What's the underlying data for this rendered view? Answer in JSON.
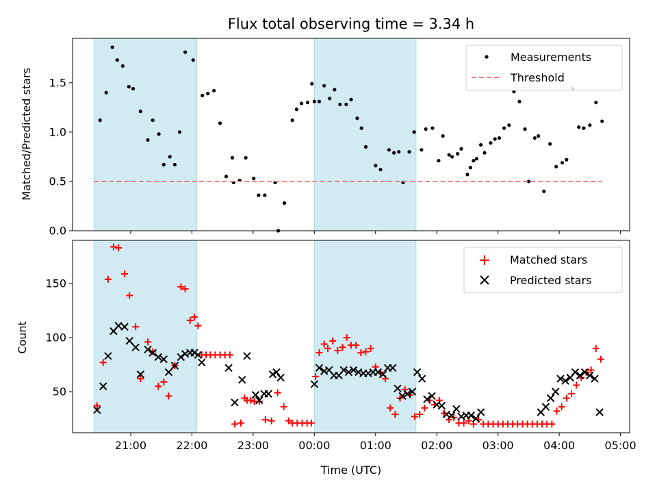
{
  "chart_data": [
    {
      "type": "scatter",
      "title": "Flux total observing time = 3.34 h",
      "xlabel": "",
      "ylabel": "Matched/Predicted stars",
      "x_unit": "hours since 00:00 UTC (night spanning midnight)",
      "xlim": [
        -3.95,
        5.15
      ],
      "ylim": [
        0,
        1.95
      ],
      "yticks": [
        0.0,
        0.5,
        1.0,
        1.5
      ],
      "ytick_labels": [
        "0.0",
        "0.5",
        "1.0",
        "1.5"
      ],
      "shaded_intervals": [
        [
          -3.6,
          -1.92
        ],
        [
          0.0,
          1.66
        ]
      ],
      "shade_color": "#add8e6",
      "legend_position": "upper right",
      "series": [
        {
          "name": "Measurements",
          "marker": "dot",
          "color": "#000000",
          "x": [
            -3.5,
            -3.4,
            -3.3,
            -3.22,
            -3.13,
            -3.03,
            -2.96,
            -2.84,
            -2.72,
            -2.64,
            -2.54,
            -2.46,
            -2.36,
            -2.28,
            -2.2,
            -2.11,
            -1.98,
            -1.83,
            -1.74,
            -1.64,
            -1.54,
            -1.44,
            -1.34,
            -1.32,
            -1.22,
            -1.12,
            -0.99,
            -0.91,
            -0.81,
            -0.64,
            -0.59,
            -0.49,
            -0.36,
            -0.29,
            -0.21,
            -0.11,
            -0.04,
            0.0,
            0.08,
            0.16,
            0.25,
            0.33,
            0.42,
            0.52,
            0.6,
            0.7,
            0.77,
            0.84,
            1.0,
            1.08,
            1.22,
            1.3,
            1.38,
            1.45,
            1.55,
            1.63,
            1.75,
            1.82,
            1.93,
            2.03,
            2.1,
            2.2,
            2.25,
            2.34,
            2.4,
            2.5,
            2.55,
            2.6,
            2.65,
            2.72,
            2.78,
            2.88,
            2.95,
            3.02,
            3.1,
            3.18,
            3.26,
            3.35,
            3.44,
            3.5,
            3.6,
            3.66,
            3.75,
            3.85,
            3.95,
            4.05,
            4.12,
            4.22,
            4.32,
            4.4,
            4.5,
            4.6,
            4.7
          ],
          "y": [
            1.12,
            1.4,
            1.86,
            1.73,
            1.67,
            1.46,
            1.44,
            1.21,
            0.92,
            1.12,
            0.98,
            0.67,
            0.75,
            0.67,
            1.0,
            1.81,
            1.73,
            1.37,
            1.39,
            1.42,
            1.09,
            0.55,
            0.74,
            0.49,
            0.51,
            0.74,
            0.53,
            0.36,
            0.36,
            0.49,
            0.0,
            0.28,
            1.12,
            1.23,
            1.29,
            1.3,
            1.49,
            1.31,
            1.31,
            1.47,
            1.34,
            1.43,
            1.28,
            1.28,
            1.33,
            1.14,
            1.04,
            0.85,
            0.66,
            0.62,
            0.82,
            0.79,
            0.8,
            0.49,
            0.8,
            1.0,
            0.82,
            1.03,
            1.04,
            0.71,
            0.96,
            0.77,
            0.75,
            0.78,
            0.83,
            0.57,
            0.64,
            0.71,
            0.73,
            0.87,
            0.79,
            0.89,
            0.93,
            0.94,
            1.04,
            1.07,
            1.41,
            1.31,
            1.03,
            0.5,
            0.94,
            0.96,
            0.4,
            0.88,
            0.65,
            0.69,
            0.72,
            1.44,
            1.05,
            1.04,
            1.07,
            1.3,
            1.11
          ]
        },
        {
          "name": "Threshold",
          "marker": "dashed-line",
          "color": "#f08080",
          "x": [
            -3.6,
            4.7
          ],
          "y": [
            0.5,
            0.5
          ]
        }
      ]
    },
    {
      "type": "scatter",
      "title": "",
      "xlabel": "Time (UTC)",
      "ylabel": "Count",
      "xlim": [
        -3.95,
        5.15
      ],
      "ylim": [
        12,
        190
      ],
      "yticks": [
        50,
        100,
        150
      ],
      "ytick_labels": [
        "50",
        "100",
        "150"
      ],
      "xticks": [
        -3,
        -2,
        -1,
        0,
        1,
        2,
        3,
        4,
        5
      ],
      "xtick_labels": [
        "21:00",
        "22:00",
        "23:00",
        "00:00",
        "01:00",
        "02:00",
        "03:00",
        "04:00",
        "05:00"
      ],
      "shaded_intervals": [
        [
          -3.6,
          -1.92
        ],
        [
          0.0,
          1.66
        ]
      ],
      "shade_color": "#add8e6",
      "legend_position": "upper right",
      "series": [
        {
          "name": "Matched stars",
          "marker": "plus",
          "color": "#ff0000",
          "x": [
            -3.55,
            -3.45,
            -3.37,
            -3.28,
            -3.2,
            -3.1,
            -3.02,
            -2.92,
            -2.84,
            -2.72,
            -2.64,
            -2.55,
            -2.46,
            -2.38,
            -2.28,
            -2.18,
            -2.11,
            -2.03,
            -1.96,
            -1.9,
            -1.84,
            -1.77,
            -1.7,
            -1.62,
            -1.54,
            -1.46,
            -1.38,
            -1.3,
            -1.2,
            -1.14,
            -1.1,
            -1.04,
            -0.98,
            -0.9,
            -0.8,
            -0.7,
            -0.6,
            -0.5,
            -0.42,
            -0.36,
            -0.28,
            -0.2,
            -0.12,
            -0.05,
            0.02,
            0.08,
            0.16,
            0.22,
            0.3,
            0.38,
            0.46,
            0.53,
            0.6,
            0.68,
            0.76,
            0.84,
            0.92,
            1.0,
            1.08,
            1.16,
            1.24,
            1.32,
            1.4,
            1.48,
            1.56,
            1.64,
            1.72,
            1.8,
            1.88,
            1.96,
            2.04,
            2.12,
            2.2,
            2.28,
            2.36,
            2.44,
            2.52,
            2.6,
            2.68,
            2.76,
            2.84,
            2.92,
            3.0,
            3.08,
            3.16,
            3.24,
            3.32,
            3.4,
            3.48,
            3.56,
            3.64,
            3.72,
            3.8,
            3.88,
            3.96,
            4.04,
            4.12,
            4.2,
            4.28,
            4.36,
            4.44,
            4.52,
            4.6,
            4.68
          ],
          "y": [
            37,
            77,
            154,
            184,
            183,
            159,
            139,
            110,
            62,
            96,
            87,
            55,
            59,
            46,
            74,
            147,
            145,
            116,
            119,
            111,
            84,
            84,
            84,
            84,
            84,
            84,
            84,
            20,
            21,
            44,
            42,
            42,
            41,
            41,
            24,
            23,
            49,
            36,
            23,
            21,
            21,
            21,
            21,
            21,
            64,
            86,
            94,
            90,
            97,
            88,
            91,
            100,
            93,
            93,
            86,
            87,
            90,
            73,
            68,
            62,
            35,
            29,
            44,
            52,
            47,
            27,
            29,
            35,
            42,
            38,
            42,
            30,
            24,
            26,
            21,
            21,
            23,
            20,
            24,
            20,
            20,
            20,
            20,
            20,
            20,
            20,
            20,
            20,
            20,
            20,
            20,
            20,
            20,
            20,
            32,
            36,
            44,
            48,
            56,
            63,
            68,
            70,
            90,
            80
          ]
        },
        {
          "name": "Predicted stars",
          "marker": "x",
          "color": "#000000",
          "x": [
            -3.55,
            -3.45,
            -3.37,
            -3.28,
            -3.2,
            -3.1,
            -3.02,
            -2.92,
            -2.84,
            -2.72,
            -2.64,
            -2.55,
            -2.46,
            -2.38,
            -2.28,
            -2.18,
            -2.11,
            -2.03,
            -1.96,
            -1.9,
            -1.84,
            -1.4,
            -1.3,
            -1.18,
            -1.1,
            -0.96,
            -0.9,
            -0.82,
            -0.75,
            -0.68,
            -0.62,
            -0.55,
            0.0,
            0.08,
            0.16,
            0.24,
            0.32,
            0.4,
            0.48,
            0.56,
            0.64,
            0.72,
            0.8,
            0.88,
            0.96,
            1.04,
            1.12,
            1.2,
            1.28,
            1.36,
            1.44,
            1.52,
            1.6,
            1.68,
            1.76,
            1.84,
            1.92,
            2.0,
            2.08,
            2.16,
            2.24,
            2.32,
            2.4,
            2.48,
            2.56,
            2.64,
            2.72,
            3.7,
            3.78,
            3.86,
            3.94,
            4.02,
            4.1,
            4.18,
            4.26,
            4.34,
            4.42,
            4.5,
            4.58,
            4.66
          ],
          "y": [
            33,
            55,
            83,
            106,
            111,
            110,
            97,
            91,
            66,
            89,
            86,
            82,
            80,
            68,
            74,
            82,
            85,
            86,
            86,
            84,
            77,
            72,
            40,
            61,
            83,
            47,
            42,
            48,
            48,
            66,
            68,
            63,
            57,
            72,
            69,
            70,
            65,
            65,
            70,
            68,
            70,
            68,
            67,
            67,
            68,
            68,
            66,
            72,
            72,
            53,
            46,
            48,
            50,
            68,
            62,
            43,
            46,
            38,
            37,
            29,
            28,
            34,
            27,
            28,
            28,
            25,
            31,
            31,
            36,
            44,
            50,
            62,
            60,
            63,
            68,
            65,
            68,
            65,
            62,
            31
          ]
        }
      ]
    }
  ]
}
